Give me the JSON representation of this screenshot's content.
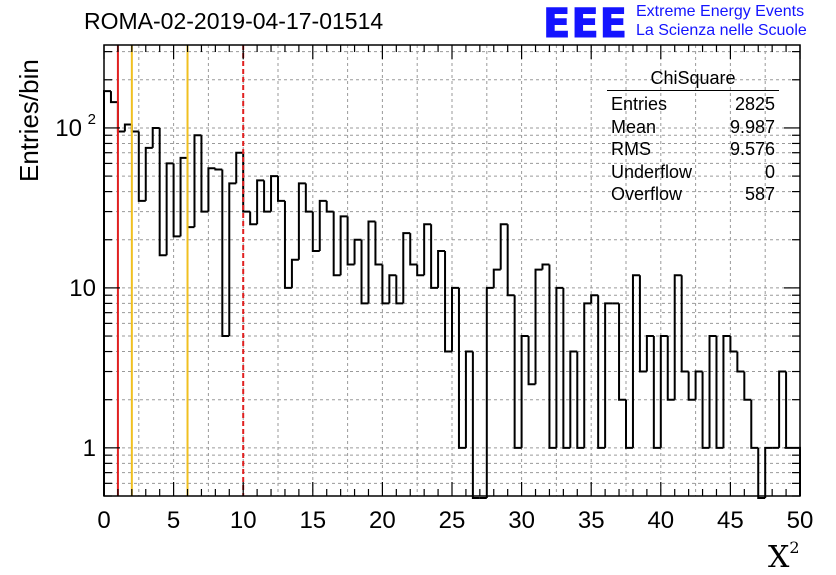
{
  "title": "ROMA-02-2019-04-17-01514",
  "logo": {
    "mark": "EEE",
    "line1": "Extreme Energy Events",
    "line2": "La Scienza nelle Scuole",
    "color": "#1414ff"
  },
  "stats_box": {
    "title": "ChiSquare",
    "rows": [
      {
        "label": "Entries",
        "value": "2825"
      },
      {
        "label": "Mean",
        "value": "9.987"
      },
      {
        "label": "RMS",
        "value": "9.576"
      },
      {
        "label": "Underflow",
        "value": "0"
      },
      {
        "label": "Overflow",
        "value": "587"
      }
    ]
  },
  "chart_data": {
    "type": "histogram",
    "title": "ROMA-02-2019-04-17-01514",
    "xlabel": "X",
    "xlabel_sup": "2",
    "ylabel": "Entries/bin",
    "xlim": [
      0,
      50
    ],
    "ylim": [
      0.5,
      330
    ],
    "yscale": "log",
    "grid": true,
    "bin_width": 0.5,
    "bin_start": 0,
    "x_ticks": [
      "0",
      "5",
      "10",
      "15",
      "20",
      "25",
      "30",
      "35",
      "40",
      "45",
      "50"
    ],
    "y_ticks": [
      {
        "value": 1,
        "label": "1"
      },
      {
        "value": 10,
        "label": "10"
      },
      {
        "value": 100,
        "label": "10",
        "sup": "2"
      }
    ],
    "values": [
      170,
      145,
      95,
      105,
      95,
      35,
      75,
      100,
      16,
      60,
      21,
      65,
      24,
      90,
      30,
      56,
      55,
      5,
      45,
      70,
      30,
      25,
      47,
      30,
      50,
      35,
      10,
      15,
      45,
      30,
      17,
      35,
      30,
      12,
      28,
      14,
      20,
      8,
      26,
      14,
      8,
      12,
      8,
      22,
      14,
      12,
      25,
      10,
      17,
      4,
      10,
      1,
      4,
      0,
      0,
      10,
      13,
      25,
      9,
      1,
      5,
      2.5,
      13,
      14,
      1,
      10,
      1,
      4,
      1,
      8,
      9,
      1,
      8,
      8,
      2,
      1,
      12,
      3,
      5,
      1,
      5,
      2,
      12,
      3,
      2,
      3,
      1,
      5,
      1,
      5,
      4,
      3,
      2,
      1,
      0,
      1,
      1,
      3,
      1,
      1
    ],
    "vertical_lines": [
      {
        "x": 1,
        "color": "#e02020",
        "style": "solid"
      },
      {
        "x": 2,
        "color": "#f0c020",
        "style": "solid"
      },
      {
        "x": 6,
        "color": "#f0c020",
        "style": "solid"
      },
      {
        "x": 10,
        "color": "#e02020",
        "style": "dashed"
      }
    ]
  }
}
